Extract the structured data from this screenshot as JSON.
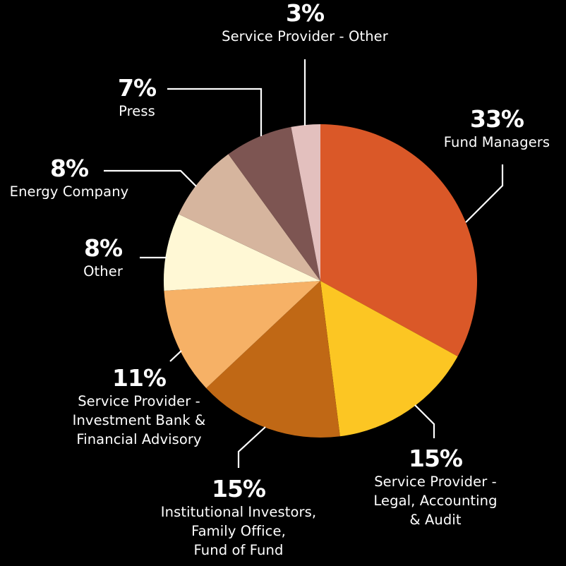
{
  "chart_data": {
    "type": "pie",
    "title": "",
    "start_angle_deg": 0,
    "direction": "clockwise",
    "center": [
      454,
      398
    ],
    "radius": 222,
    "slices": [
      {
        "label": "Fund Managers",
        "value": 33,
        "pct_label": "33%",
        "color": "#DA5828"
      },
      {
        "label": "Service Provider - Legal, Accounting & Audit",
        "value": 15,
        "pct_label": "15%",
        "color": "#FCC623"
      },
      {
        "label": "Institutional Investors, Family Office, Fund of Fund",
        "value": 15,
        "pct_label": "15%",
        "color": "#C06815"
      },
      {
        "label": "Service Provider - Investment Bank & Financial Advisory",
        "value": 11,
        "pct_label": "11%",
        "color": "#F6B166"
      },
      {
        "label": "Other",
        "value": 8,
        "pct_label": "8%",
        "color": "#FFF8D5"
      },
      {
        "label": "Energy Company",
        "value": 8,
        "pct_label": "8%",
        "color": "#D6B59E"
      },
      {
        "label": "Press",
        "value": 7,
        "pct_label": "7%",
        "color": "#7D5552"
      },
      {
        "label": "Service Provider - Other",
        "value": 3,
        "pct_label": "3%",
        "color": "#E3C0BE"
      }
    ],
    "legend": "none (callout labels with leader lines)"
  },
  "labels": {
    "fund_managers": {
      "pct": "33%",
      "lines": [
        "Fund Managers"
      ]
    },
    "legal": {
      "pct": "15%",
      "lines": [
        "Service Provider -",
        "Legal, Accounting",
        "& Audit"
      ]
    },
    "institutional": {
      "pct": "15%",
      "lines": [
        "Institutional Investors,",
        "Family Office,",
        "Fund of Fund"
      ]
    },
    "investment_bank": {
      "pct": "11%",
      "lines": [
        "Service Provider -",
        "Investment Bank &",
        "Financial Advisory"
      ]
    },
    "other": {
      "pct": "8%",
      "lines": [
        "Other"
      ]
    },
    "energy": {
      "pct": "8%",
      "lines": [
        "Energy Company"
      ]
    },
    "press": {
      "pct": "7%",
      "lines": [
        "Press"
      ]
    },
    "sp_other": {
      "pct": "3%",
      "lines": [
        "Service Provider - Other"
      ]
    }
  },
  "leader_line_color": "#FFFFFF"
}
